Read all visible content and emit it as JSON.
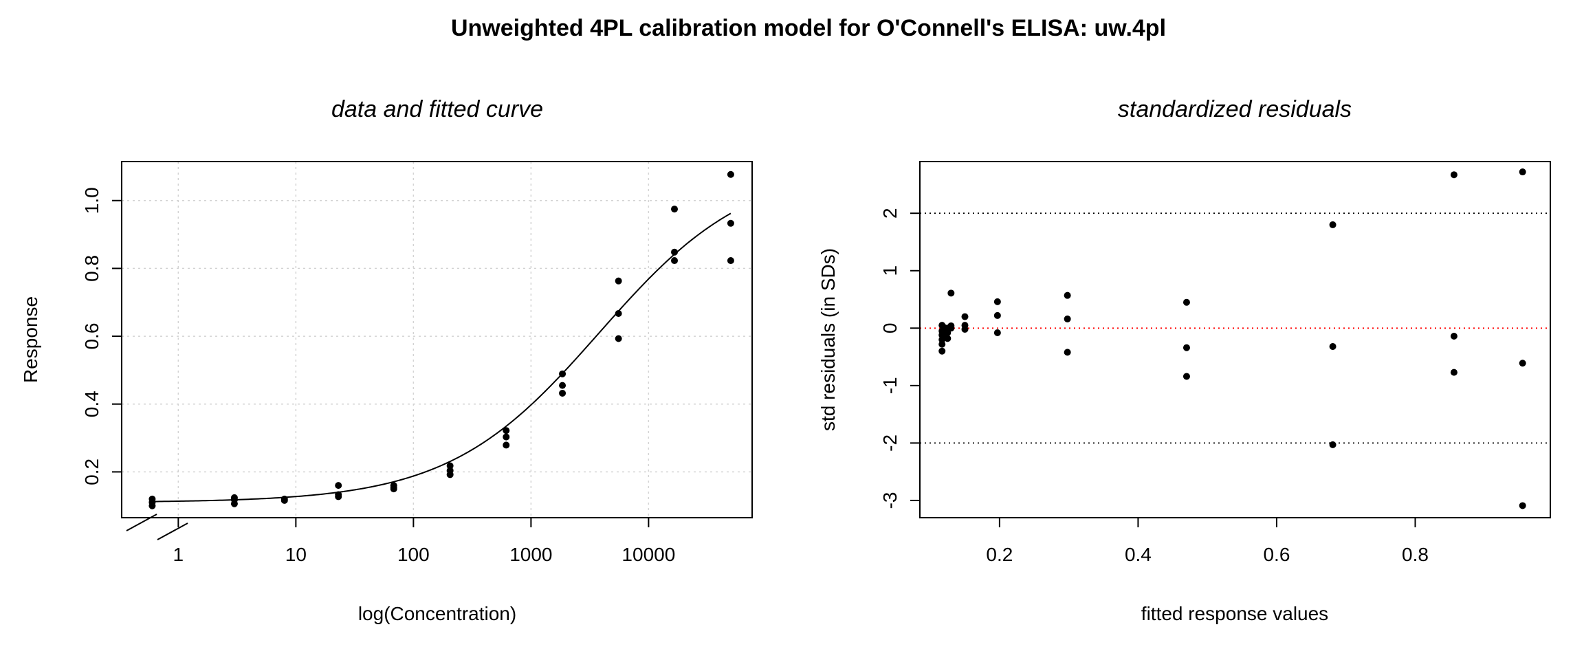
{
  "figure": {
    "title": "Unweighted 4PL calibration model for O'Connell's ELISA: uw.4pl"
  },
  "chart_data": [
    {
      "type": "scatter",
      "title": "data and fitted curve",
      "xlabel": "log(Concentration)",
      "ylabel": "Response",
      "x_scale": "log10",
      "x_ticks": [
        1,
        10,
        100,
        1000,
        10000
      ],
      "x_tick_labels": [
        "1",
        "10",
        "100",
        "1000",
        "10000"
      ],
      "y_ticks": [
        0.2,
        0.4,
        0.6,
        0.8,
        1.0
      ],
      "y_tick_labels": [
        "0.2",
        "0.4",
        "0.6",
        "0.8",
        "1.0"
      ],
      "xlim": [
        0.33,
        76000
      ],
      "ylim": [
        0.065,
        1.115
      ],
      "grid": true,
      "axis_break": true,
      "points": [
        [
          0.6,
          0.1
        ],
        [
          0.6,
          0.11
        ],
        [
          0.6,
          0.12
        ],
        [
          3,
          0.106
        ],
        [
          3,
          0.118
        ],
        [
          3,
          0.124
        ],
        [
          8,
          0.116
        ],
        [
          8,
          0.12
        ],
        [
          23,
          0.127
        ],
        [
          23,
          0.133
        ],
        [
          23,
          0.16
        ],
        [
          68,
          0.15
        ],
        [
          68,
          0.155
        ],
        [
          68,
          0.16
        ],
        [
          205,
          0.192
        ],
        [
          205,
          0.204
        ],
        [
          205,
          0.218
        ],
        [
          615,
          0.279
        ],
        [
          615,
          0.303
        ],
        [
          615,
          0.322
        ],
        [
          1850,
          0.432
        ],
        [
          1850,
          0.455
        ],
        [
          1850,
          0.489
        ],
        [
          5550,
          0.593
        ],
        [
          5550,
          0.667
        ],
        [
          5550,
          0.763
        ],
        [
          16600,
          0.823
        ],
        [
          16600,
          0.848
        ],
        [
          16600,
          0.975
        ],
        [
          50000,
          0.823
        ],
        [
          50000,
          0.933
        ],
        [
          50000,
          1.077
        ]
      ],
      "fit": {
        "model": "4PL",
        "bottom": 0.11,
        "top": 1.11,
        "ec50": 3800,
        "slope": 0.68,
        "x_range": [
          0.6,
          50000
        ]
      }
    },
    {
      "type": "scatter",
      "title": "standardized residuals",
      "xlabel": "fitted response values",
      "ylabel": "std residuals (in SDs)",
      "x_ticks": [
        0.2,
        0.4,
        0.6,
        0.8
      ],
      "x_tick_labels": [
        "0.2",
        "0.4",
        "0.6",
        "0.8"
      ],
      "y_ticks": [
        -3,
        -2,
        -1,
        0,
        1,
        2
      ],
      "y_tick_labels": [
        "-3",
        "-2",
        "-1",
        "0",
        "1",
        "2"
      ],
      "xlim": [
        0.085,
        0.995
      ],
      "ylim": [
        -3.3,
        2.9
      ],
      "reference_lines": [
        -2,
        2
      ],
      "zero_line": 0,
      "points": [
        [
          0.117,
          -0.4
        ],
        [
          0.117,
          -0.28
        ],
        [
          0.117,
          -0.2
        ],
        [
          0.117,
          -0.12
        ],
        [
          0.117,
          -0.05
        ],
        [
          0.117,
          0.05
        ],
        [
          0.119,
          -0.15
        ],
        [
          0.119,
          -0.05
        ],
        [
          0.119,
          0.02
        ],
        [
          0.121,
          -0.1
        ],
        [
          0.121,
          0.0
        ],
        [
          0.125,
          -0.18
        ],
        [
          0.125,
          -0.08
        ],
        [
          0.125,
          0.0
        ],
        [
          0.13,
          0.0
        ],
        [
          0.13,
          0.04
        ],
        [
          0.13,
          0.61
        ],
        [
          0.15,
          -0.02
        ],
        [
          0.15,
          0.05
        ],
        [
          0.15,
          0.2
        ],
        [
          0.197,
          -0.08
        ],
        [
          0.197,
          0.22
        ],
        [
          0.197,
          0.46
        ],
        [
          0.298,
          -0.42
        ],
        [
          0.298,
          0.16
        ],
        [
          0.298,
          0.57
        ],
        [
          0.47,
          -0.84
        ],
        [
          0.47,
          -0.34
        ],
        [
          0.47,
          0.45
        ],
        [
          0.681,
          -2.03
        ],
        [
          0.681,
          -0.32
        ],
        [
          0.681,
          1.8
        ],
        [
          0.856,
          -0.77
        ],
        [
          0.856,
          -0.14
        ],
        [
          0.856,
          2.67
        ],
        [
          0.955,
          -3.09
        ],
        [
          0.955,
          -0.61
        ],
        [
          0.955,
          2.72
        ]
      ]
    }
  ]
}
